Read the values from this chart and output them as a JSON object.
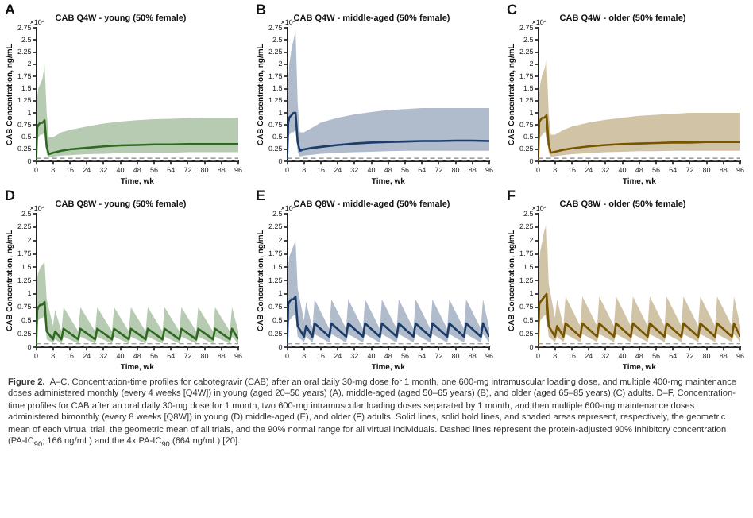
{
  "chart_data": [
    {
      "type": "line",
      "title": "CAB Q4W - young (50% female)",
      "xlabel": "Time, wk",
      "ylabel": "CAB Concentration, ng/mL",
      "annotations": [
        "A",
        "×10⁴"
      ],
      "x": [
        0,
        0.5,
        1,
        2,
        3,
        4,
        5,
        6,
        8,
        12,
        16,
        24,
        32,
        40,
        48,
        56,
        64,
        72,
        80,
        88,
        96
      ],
      "xlim": [
        0,
        96
      ],
      "xticks": [
        0,
        8,
        16,
        24,
        32,
        40,
        48,
        56,
        64,
        72,
        80,
        88,
        96
      ],
      "ylim": [
        0,
        2.75
      ],
      "yticks": [
        0,
        0.25,
        0.5,
        0.75,
        1,
        1.25,
        1.5,
        1.75,
        2,
        2.25,
        2.5,
        2.75
      ],
      "grid": false,
      "legend": false,
      "marker": "none",
      "line_style": "solid",
      "ref_lines": [
        {
          "axis": "y",
          "value": 0.0166,
          "color": "#808080",
          "line_style": "dashed"
        },
        {
          "axis": "y",
          "value": 0.0664,
          "color": "#808080",
          "line_style": "dashed"
        }
      ],
      "series": [
        {
          "color": "#2e6b1f",
          "values": [
            0,
            0.7,
            0.75,
            0.8,
            0.8,
            0.85,
            0.3,
            0.15,
            0.18,
            0.22,
            0.25,
            0.28,
            0.31,
            0.33,
            0.34,
            0.35,
            0.35,
            0.36,
            0.36,
            0.36,
            0.36
          ],
          "lower": [
            0,
            0.4,
            0.5,
            0.55,
            0.55,
            0.6,
            0.15,
            0.08,
            0.1,
            0.12,
            0.13,
            0.15,
            0.16,
            0.17,
            0.18,
            0.18,
            0.18,
            0.19,
            0.19,
            0.19,
            0.19
          ],
          "upper": [
            0,
            1.3,
            1.5,
            1.6,
            1.7,
            2,
            1,
            0.5,
            0.5,
            0.6,
            0.65,
            0.72,
            0.78,
            0.82,
            0.85,
            0.87,
            0.88,
            0.89,
            0.9,
            0.9,
            0.9
          ]
        }
      ]
    },
    {
      "type": "line",
      "title": "CAB Q4W - middle-aged (50% female)",
      "xlabel": "Time, wk",
      "ylabel": "CAB Concentration, ng/mL",
      "annotations": [
        "B",
        "×10⁴"
      ],
      "x": [
        0,
        0.5,
        1,
        2,
        3,
        4,
        5,
        6,
        8,
        12,
        16,
        24,
        32,
        40,
        48,
        56,
        64,
        72,
        80,
        88,
        96
      ],
      "xlim": [
        0,
        96
      ],
      "xticks": [
        0,
        8,
        16,
        24,
        32,
        40,
        48,
        56,
        64,
        72,
        80,
        88,
        96
      ],
      "ylim": [
        0,
        2.75
      ],
      "yticks": [
        0,
        0.25,
        0.5,
        0.75,
        1,
        1.25,
        1.5,
        1.75,
        2,
        2.25,
        2.5,
        2.75
      ],
      "grid": false,
      "legend": false,
      "marker": "none",
      "line_style": "solid",
      "ref_lines": [
        {
          "axis": "y",
          "value": 0.0166,
          "color": "#808080",
          "line_style": "dashed"
        },
        {
          "axis": "y",
          "value": 0.0664,
          "color": "#808080",
          "line_style": "dashed"
        }
      ],
      "series": [
        {
          "color": "#1c3d6b",
          "values": [
            0,
            0.8,
            0.9,
            0.95,
            1,
            1,
            0.4,
            0.22,
            0.25,
            0.28,
            0.3,
            0.34,
            0.37,
            0.39,
            0.4,
            0.41,
            0.42,
            0.42,
            0.43,
            0.43,
            0.42
          ],
          "lower": [
            0,
            0.45,
            0.55,
            0.6,
            0.6,
            0.65,
            0.2,
            0.1,
            0.12,
            0.14,
            0.16,
            0.18,
            0.19,
            0.2,
            0.21,
            0.22,
            0.22,
            0.22,
            0.22,
            0.22,
            0.22
          ],
          "upper": [
            0,
            1.6,
            2,
            2.3,
            2.5,
            2.7,
            1.2,
            0.6,
            0.6,
            0.7,
            0.8,
            0.9,
            0.97,
            1.02,
            1.06,
            1.08,
            1.1,
            1.1,
            1.1,
            1.1,
            1.1
          ]
        }
      ]
    },
    {
      "type": "line",
      "title": "CAB Q4W - older (50% female)",
      "xlabel": "Time, wk",
      "ylabel": "CAB Concentration, ng/mL",
      "annotations": [
        "C",
        "×10⁴"
      ],
      "x": [
        0,
        0.5,
        1,
        2,
        3,
        4,
        5,
        6,
        8,
        12,
        16,
        24,
        32,
        40,
        48,
        56,
        64,
        72,
        80,
        88,
        96
      ],
      "xlim": [
        0,
        96
      ],
      "xticks": [
        0,
        8,
        16,
        24,
        32,
        40,
        48,
        56,
        64,
        72,
        80,
        88,
        96
      ],
      "ylim": [
        0,
        2.75
      ],
      "yticks": [
        0,
        0.25,
        0.5,
        0.75,
        1,
        1.25,
        1.5,
        1.75,
        2,
        2.25,
        2.5,
        2.75
      ],
      "grid": false,
      "legend": false,
      "marker": "none",
      "line_style": "solid",
      "ref_lines": [
        {
          "axis": "y",
          "value": 0.0166,
          "color": "#808080",
          "line_style": "dashed"
        },
        {
          "axis": "y",
          "value": 0.0664,
          "color": "#808080",
          "line_style": "dashed"
        }
      ],
      "series": [
        {
          "color": "#7a5500",
          "values": [
            0,
            0.8,
            0.85,
            0.9,
            0.9,
            0.95,
            0.35,
            0.18,
            0.2,
            0.24,
            0.27,
            0.31,
            0.34,
            0.36,
            0.37,
            0.38,
            0.39,
            0.39,
            0.4,
            0.4,
            0.4
          ],
          "lower": [
            0,
            0.45,
            0.5,
            0.55,
            0.6,
            0.6,
            0.18,
            0.1,
            0.11,
            0.13,
            0.15,
            0.17,
            0.19,
            0.2,
            0.21,
            0.21,
            0.22,
            0.22,
            0.22,
            0.22,
            0.22
          ],
          "upper": [
            0,
            1.4,
            1.6,
            1.8,
            1.9,
            2.1,
            1,
            0.55,
            0.55,
            0.65,
            0.72,
            0.8,
            0.86,
            0.9,
            0.94,
            0.96,
            0.98,
            1,
            1,
            1,
            1
          ]
        }
      ]
    },
    {
      "type": "line",
      "title": "CAB Q8W - young (50% female)",
      "xlabel": "Time, wk",
      "ylabel": "CAB Concentration, ng/mL",
      "annotations": [
        "D",
        "×10⁴"
      ],
      "x": [
        0,
        0.5,
        1,
        2,
        3,
        4,
        5,
        8,
        9,
        12,
        13,
        20,
        21,
        28,
        29,
        36,
        37,
        44,
        45,
        52,
        53,
        60,
        61,
        68,
        69,
        76,
        77,
        84,
        85,
        92,
        93,
        96
      ],
      "xlim": [
        0,
        96
      ],
      "xticks": [
        0,
        8,
        16,
        24,
        32,
        40,
        48,
        56,
        64,
        72,
        80,
        88,
        96
      ],
      "ylim": [
        0,
        2.5
      ],
      "yticks": [
        0,
        0.25,
        0.5,
        0.75,
        1,
        1.25,
        1.5,
        1.75,
        2,
        2.25,
        2.5
      ],
      "grid": false,
      "legend": false,
      "marker": "none",
      "line_style": "solid",
      "ref_lines": [
        {
          "axis": "y",
          "value": 0.0166,
          "color": "#808080",
          "line_style": "dashed"
        },
        {
          "axis": "y",
          "value": 0.0664,
          "color": "#808080",
          "line_style": "dashed"
        }
      ],
      "series": [
        {
          "color": "#2e6b1f",
          "values": [
            0,
            0.7,
            0.75,
            0.8,
            0.8,
            0.85,
            0.3,
            0.15,
            0.3,
            0.15,
            0.35,
            0.15,
            0.35,
            0.15,
            0.35,
            0.15,
            0.35,
            0.15,
            0.35,
            0.15,
            0.35,
            0.15,
            0.35,
            0.15,
            0.35,
            0.15,
            0.35,
            0.15,
            0.35,
            0.15,
            0.35,
            0.15
          ],
          "lower": [
            0,
            0.4,
            0.5,
            0.55,
            0.55,
            0.6,
            0.15,
            0.08,
            0.15,
            0.07,
            0.2,
            0.07,
            0.2,
            0.07,
            0.2,
            0.07,
            0.2,
            0.07,
            0.2,
            0.07,
            0.2,
            0.07,
            0.2,
            0.07,
            0.2,
            0.07,
            0.2,
            0.07,
            0.2,
            0.07,
            0.2,
            0.07
          ],
          "upper": [
            0,
            1.3,
            1.4,
            1.5,
            1.55,
            1.6,
            0.9,
            0.4,
            0.7,
            0.3,
            0.75,
            0.3,
            0.75,
            0.3,
            0.75,
            0.3,
            0.75,
            0.3,
            0.75,
            0.3,
            0.75,
            0.3,
            0.75,
            0.3,
            0.75,
            0.3,
            0.75,
            0.3,
            0.75,
            0.3,
            0.75,
            0.3
          ]
        }
      ]
    },
    {
      "type": "line",
      "title": "CAB Q8W - middle-aged (50% female)",
      "xlabel": "Time, wk",
      "ylabel": "CAB Concentration, ng/mL",
      "annotations": [
        "E",
        "×10⁴"
      ],
      "x": [
        0,
        0.5,
        1,
        2,
        3,
        4,
        5,
        8,
        9,
        12,
        13,
        20,
        21,
        28,
        29,
        36,
        37,
        44,
        45,
        52,
        53,
        60,
        61,
        68,
        69,
        76,
        77,
        84,
        85,
        92,
        93,
        96
      ],
      "xlim": [
        0,
        96
      ],
      "xticks": [
        0,
        8,
        16,
        24,
        32,
        40,
        48,
        56,
        64,
        72,
        80,
        88,
        96
      ],
      "ylim": [
        0,
        2.5
      ],
      "yticks": [
        0,
        0.25,
        0.5,
        0.75,
        1,
        1.25,
        1.5,
        1.75,
        2,
        2.25,
        2.5
      ],
      "grid": false,
      "legend": false,
      "marker": "none",
      "line_style": "solid",
      "ref_lines": [
        {
          "axis": "y",
          "value": 0.0166,
          "color": "#808080",
          "line_style": "dashed"
        },
        {
          "axis": "y",
          "value": 0.0664,
          "color": "#808080",
          "line_style": "dashed"
        }
      ],
      "series": [
        {
          "color": "#1c3d6b",
          "values": [
            0,
            0.8,
            0.85,
            0.9,
            0.9,
            0.95,
            0.4,
            0.2,
            0.4,
            0.2,
            0.45,
            0.2,
            0.45,
            0.2,
            0.45,
            0.2,
            0.45,
            0.2,
            0.45,
            0.2,
            0.45,
            0.2,
            0.45,
            0.2,
            0.45,
            0.2,
            0.45,
            0.2,
            0.45,
            0.2,
            0.45,
            0.2
          ],
          "lower": [
            0,
            0.45,
            0.5,
            0.55,
            0.6,
            0.6,
            0.2,
            0.1,
            0.2,
            0.09,
            0.25,
            0.09,
            0.25,
            0.09,
            0.25,
            0.09,
            0.25,
            0.09,
            0.25,
            0.09,
            0.25,
            0.09,
            0.25,
            0.09,
            0.25,
            0.09,
            0.25,
            0.09,
            0.25,
            0.09,
            0.25,
            0.09
          ],
          "upper": [
            0,
            1.5,
            1.7,
            1.8,
            1.9,
            2,
            1.1,
            0.5,
            0.85,
            0.35,
            0.9,
            0.35,
            0.9,
            0.35,
            0.9,
            0.35,
            0.9,
            0.35,
            0.9,
            0.35,
            0.9,
            0.35,
            0.9,
            0.35,
            0.9,
            0.35,
            0.9,
            0.35,
            0.9,
            0.35,
            0.9,
            0.35
          ]
        }
      ]
    },
    {
      "type": "line",
      "title": "CAB Q8W - older (50% female)",
      "xlabel": "Time, wk",
      "ylabel": "CAB Concentration, ng/mL",
      "annotations": [
        "F",
        "×10⁴"
      ],
      "x": [
        0,
        0.5,
        1,
        2,
        3,
        4,
        5,
        8,
        9,
        12,
        13,
        20,
        21,
        28,
        29,
        36,
        37,
        44,
        45,
        52,
        53,
        60,
        61,
        68,
        69,
        76,
        77,
        84,
        85,
        92,
        93,
        96
      ],
      "xlim": [
        0,
        96
      ],
      "xticks": [
        0,
        8,
        16,
        24,
        32,
        40,
        48,
        56,
        64,
        72,
        80,
        88,
        96
      ],
      "ylim": [
        0,
        2.5
      ],
      "yticks": [
        0,
        0.25,
        0.5,
        0.75,
        1,
        1.25,
        1.5,
        1.75,
        2,
        2.25,
        2.5
      ],
      "grid": false,
      "legend": false,
      "marker": "none",
      "line_style": "solid",
      "ref_lines": [
        {
          "axis": "y",
          "value": 0.0166,
          "color": "#808080",
          "line_style": "dashed"
        },
        {
          "axis": "y",
          "value": 0.0664,
          "color": "#808080",
          "line_style": "dashed"
        }
      ],
      "series": [
        {
          "color": "#7a5500",
          "values": [
            0,
            0.8,
            0.85,
            0.9,
            0.95,
            1,
            0.4,
            0.2,
            0.4,
            0.2,
            0.45,
            0.2,
            0.45,
            0.2,
            0.45,
            0.2,
            0.45,
            0.2,
            0.45,
            0.2,
            0.45,
            0.2,
            0.45,
            0.2,
            0.45,
            0.2,
            0.45,
            0.2,
            0.45,
            0.2,
            0.45,
            0.2
          ],
          "lower": [
            0,
            0.45,
            0.5,
            0.55,
            0.6,
            0.6,
            0.2,
            0.1,
            0.2,
            0.1,
            0.25,
            0.1,
            0.25,
            0.1,
            0.25,
            0.1,
            0.25,
            0.1,
            0.25,
            0.1,
            0.25,
            0.1,
            0.25,
            0.1,
            0.25,
            0.1,
            0.25,
            0.1,
            0.25,
            0.1,
            0.25,
            0.1
          ],
          "upper": [
            0,
            1.6,
            1.8,
            2,
            2.2,
            2.3,
            1.2,
            0.55,
            0.9,
            0.4,
            0.95,
            0.4,
            0.95,
            0.4,
            0.95,
            0.4,
            0.95,
            0.4,
            0.95,
            0.4,
            0.95,
            0.4,
            0.95,
            0.4,
            0.95,
            0.4,
            0.95,
            0.4,
            0.95,
            0.4,
            0.95,
            0.4
          ]
        }
      ]
    },
    {
      "type": "other",
      "annotations": [
        "Figure 2.",
        "A–C, Concentration-time profiles for cabotegravir (CAB) after an oral daily 30-mg dose for 1 month, one 600-mg intramuscular loading dose, and multiple 400-mg maintenance doses administered monthly (every 4 weeks [Q4W]) in young (aged 20–50 years) (A), middle-aged (aged 50–65 years) (B), and older (aged 65–85 years) (C) adults. D–F, Concentration-time profiles for CAB after an oral daily 30-mg dose for 1 month, two 600-mg intramuscular loading doses separated by 1 month, and then multiple 600-mg maintenance doses administered bimonthly (every 8 weeks [Q8W]) in young (D) middle-aged (E), and older (F) adults. Solid lines, solid bold lines, and shaded areas represent, respectively, the geometric mean of each virtual trial, the geometric mean of all trials, and the 90% normal range for all virtual individuals. Dashed lines represent the protein-adjusted 90% inhibitory concentration (PA-IC$_{90}$; 166 ng/mL) and the 4x PA-IC$_{90}$ (664 ng/mL) [20]."
      ]
    }
  ]
}
